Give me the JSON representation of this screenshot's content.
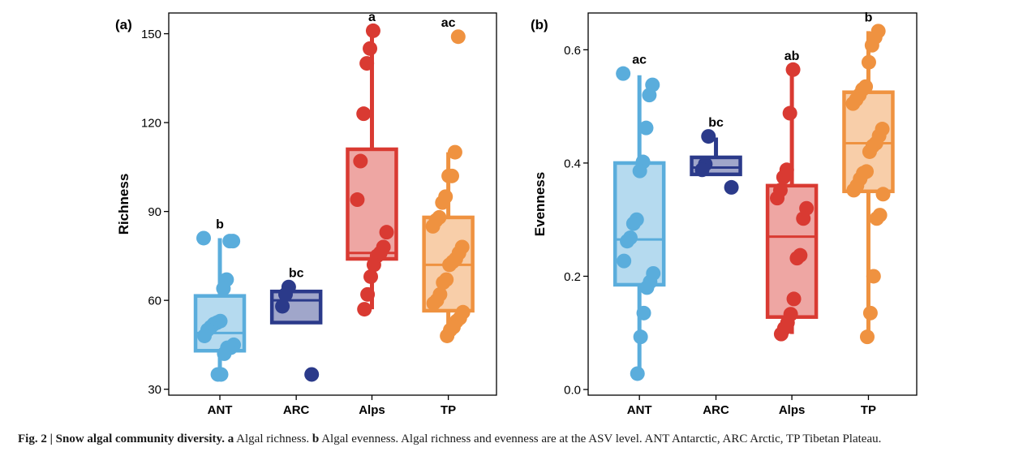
{
  "colors": {
    "ANT": "#5aaddc",
    "ARC": "#2b3a8a",
    "Alps": "#d93a32",
    "TP": "#ef9240"
  },
  "caption": {
    "fig_label": "Fig. 2 | Snow algal community diversity.",
    "part_a_label": "a",
    "part_a_text": "Algal richness.",
    "part_b_label": "b",
    "part_b_text": "Algal evenness. Algal richness and evenness are at the ASV level. ANT Antarctic, ARC Arctic, TP Tibetan Plateau."
  },
  "chart_data": [
    {
      "type": "box",
      "panel_label": "(a)",
      "ylabel": "Richness",
      "xlabel": "",
      "ylim": [
        28,
        157
      ],
      "yticks": [
        30,
        60,
        90,
        120,
        150
      ],
      "categories": [
        "ANT",
        "ARC",
        "Alps",
        "TP"
      ],
      "letters": [
        "b",
        "bc",
        "a",
        "ac"
      ],
      "boxes": [
        {
          "q1": 43,
          "median": 49,
          "q3": 61.5,
          "whisker_low": 35,
          "whisker_high": 81
        },
        {
          "q1": 52.5,
          "median": 60,
          "q3": 63,
          "whisker_low": 52.5,
          "whisker_high": 63
        },
        {
          "q1": 74,
          "median": 76,
          "q3": 111,
          "whisker_low": 57,
          "whisker_high": 151
        },
        {
          "q1": 56.5,
          "median": 72,
          "q3": 88,
          "whisker_low": 48,
          "whisker_high": 110
        }
      ],
      "points": [
        [
          81,
          80,
          80,
          67,
          64,
          53,
          52.5,
          52,
          51,
          50,
          48,
          45,
          44,
          44,
          42,
          35,
          35
        ],
        [
          64.5,
          62,
          58,
          35
        ],
        [
          151,
          145,
          140,
          123,
          107,
          94,
          83,
          78,
          76,
          75,
          72,
          68,
          62,
          57
        ],
        [
          149,
          110,
          102,
          102,
          95,
          93,
          88,
          87,
          85,
          78,
          76,
          74,
          73,
          72,
          67,
          66,
          62,
          60,
          59,
          56,
          54,
          53,
          51,
          50,
          48
        ]
      ]
    },
    {
      "type": "box",
      "panel_label": "(b)",
      "ylabel": "Evenness",
      "xlabel": "",
      "ylim": [
        -0.01,
        0.665
      ],
      "yticks": [
        0.0,
        0.2,
        0.4,
        0.6
      ],
      "ytick_labels": [
        "0.0",
        "0.2",
        "0.4",
        "0.6"
      ],
      "categories": [
        "ANT",
        "ARC",
        "Alps",
        "TP"
      ],
      "letters": [
        "ac",
        "bc",
        "ab",
        "b"
      ],
      "boxes": [
        {
          "q1": 0.185,
          "median": 0.265,
          "q3": 0.4,
          "whisker_low": 0.03,
          "whisker_high": 0.555
        },
        {
          "q1": 0.38,
          "median": 0.392,
          "q3": 0.41,
          "whisker_low": 0.38,
          "whisker_high": 0.445
        },
        {
          "q1": 0.128,
          "median": 0.27,
          "q3": 0.36,
          "whisker_low": 0.098,
          "whisker_high": 0.565
        },
        {
          "q1": 0.35,
          "median": 0.435,
          "q3": 0.525,
          "whisker_low": 0.093,
          "whisker_high": 0.633
        }
      ],
      "points": [
        [
          0.558,
          0.538,
          0.52,
          0.462,
          0.402,
          0.386,
          0.3,
          0.293,
          0.268,
          0.262,
          0.227,
          0.205,
          0.19,
          0.18,
          0.135,
          0.093,
          0.028
        ],
        [
          0.447,
          0.398,
          0.388,
          0.357
        ],
        [
          0.565,
          0.488,
          0.388,
          0.375,
          0.352,
          0.338,
          0.32,
          0.302,
          0.237,
          0.232,
          0.16,
          0.133,
          0.118,
          0.108,
          0.098
        ],
        [
          0.633,
          0.622,
          0.608,
          0.578,
          0.535,
          0.53,
          0.52,
          0.512,
          0.505,
          0.46,
          0.448,
          0.435,
          0.43,
          0.42,
          0.385,
          0.382,
          0.372,
          0.36,
          0.352,
          0.345,
          0.308,
          0.302,
          0.2,
          0.135,
          0.093
        ]
      ]
    }
  ]
}
